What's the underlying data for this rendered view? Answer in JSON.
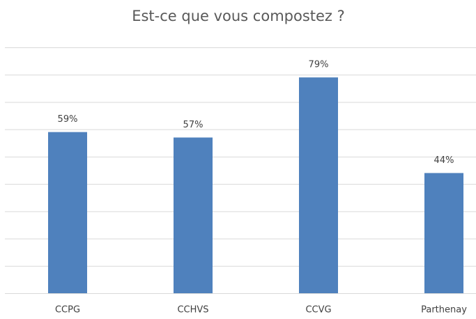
{
  "chart_data": {
    "type": "bar",
    "title": "Est-ce que vous compostez ?",
    "categories": [
      "CCPG",
      "CCHVS",
      "CCVG",
      "Parthenay"
    ],
    "values": [
      59,
      57,
      79,
      44
    ],
    "value_labels": [
      "59%",
      "57%",
      "79%",
      "44%"
    ],
    "color": "#4f81bd",
    "ylim": [
      0,
      90
    ],
    "yticks": [
      0,
      10,
      20,
      30,
      40,
      50,
      60,
      70,
      80,
      90
    ],
    "grid": true
  }
}
